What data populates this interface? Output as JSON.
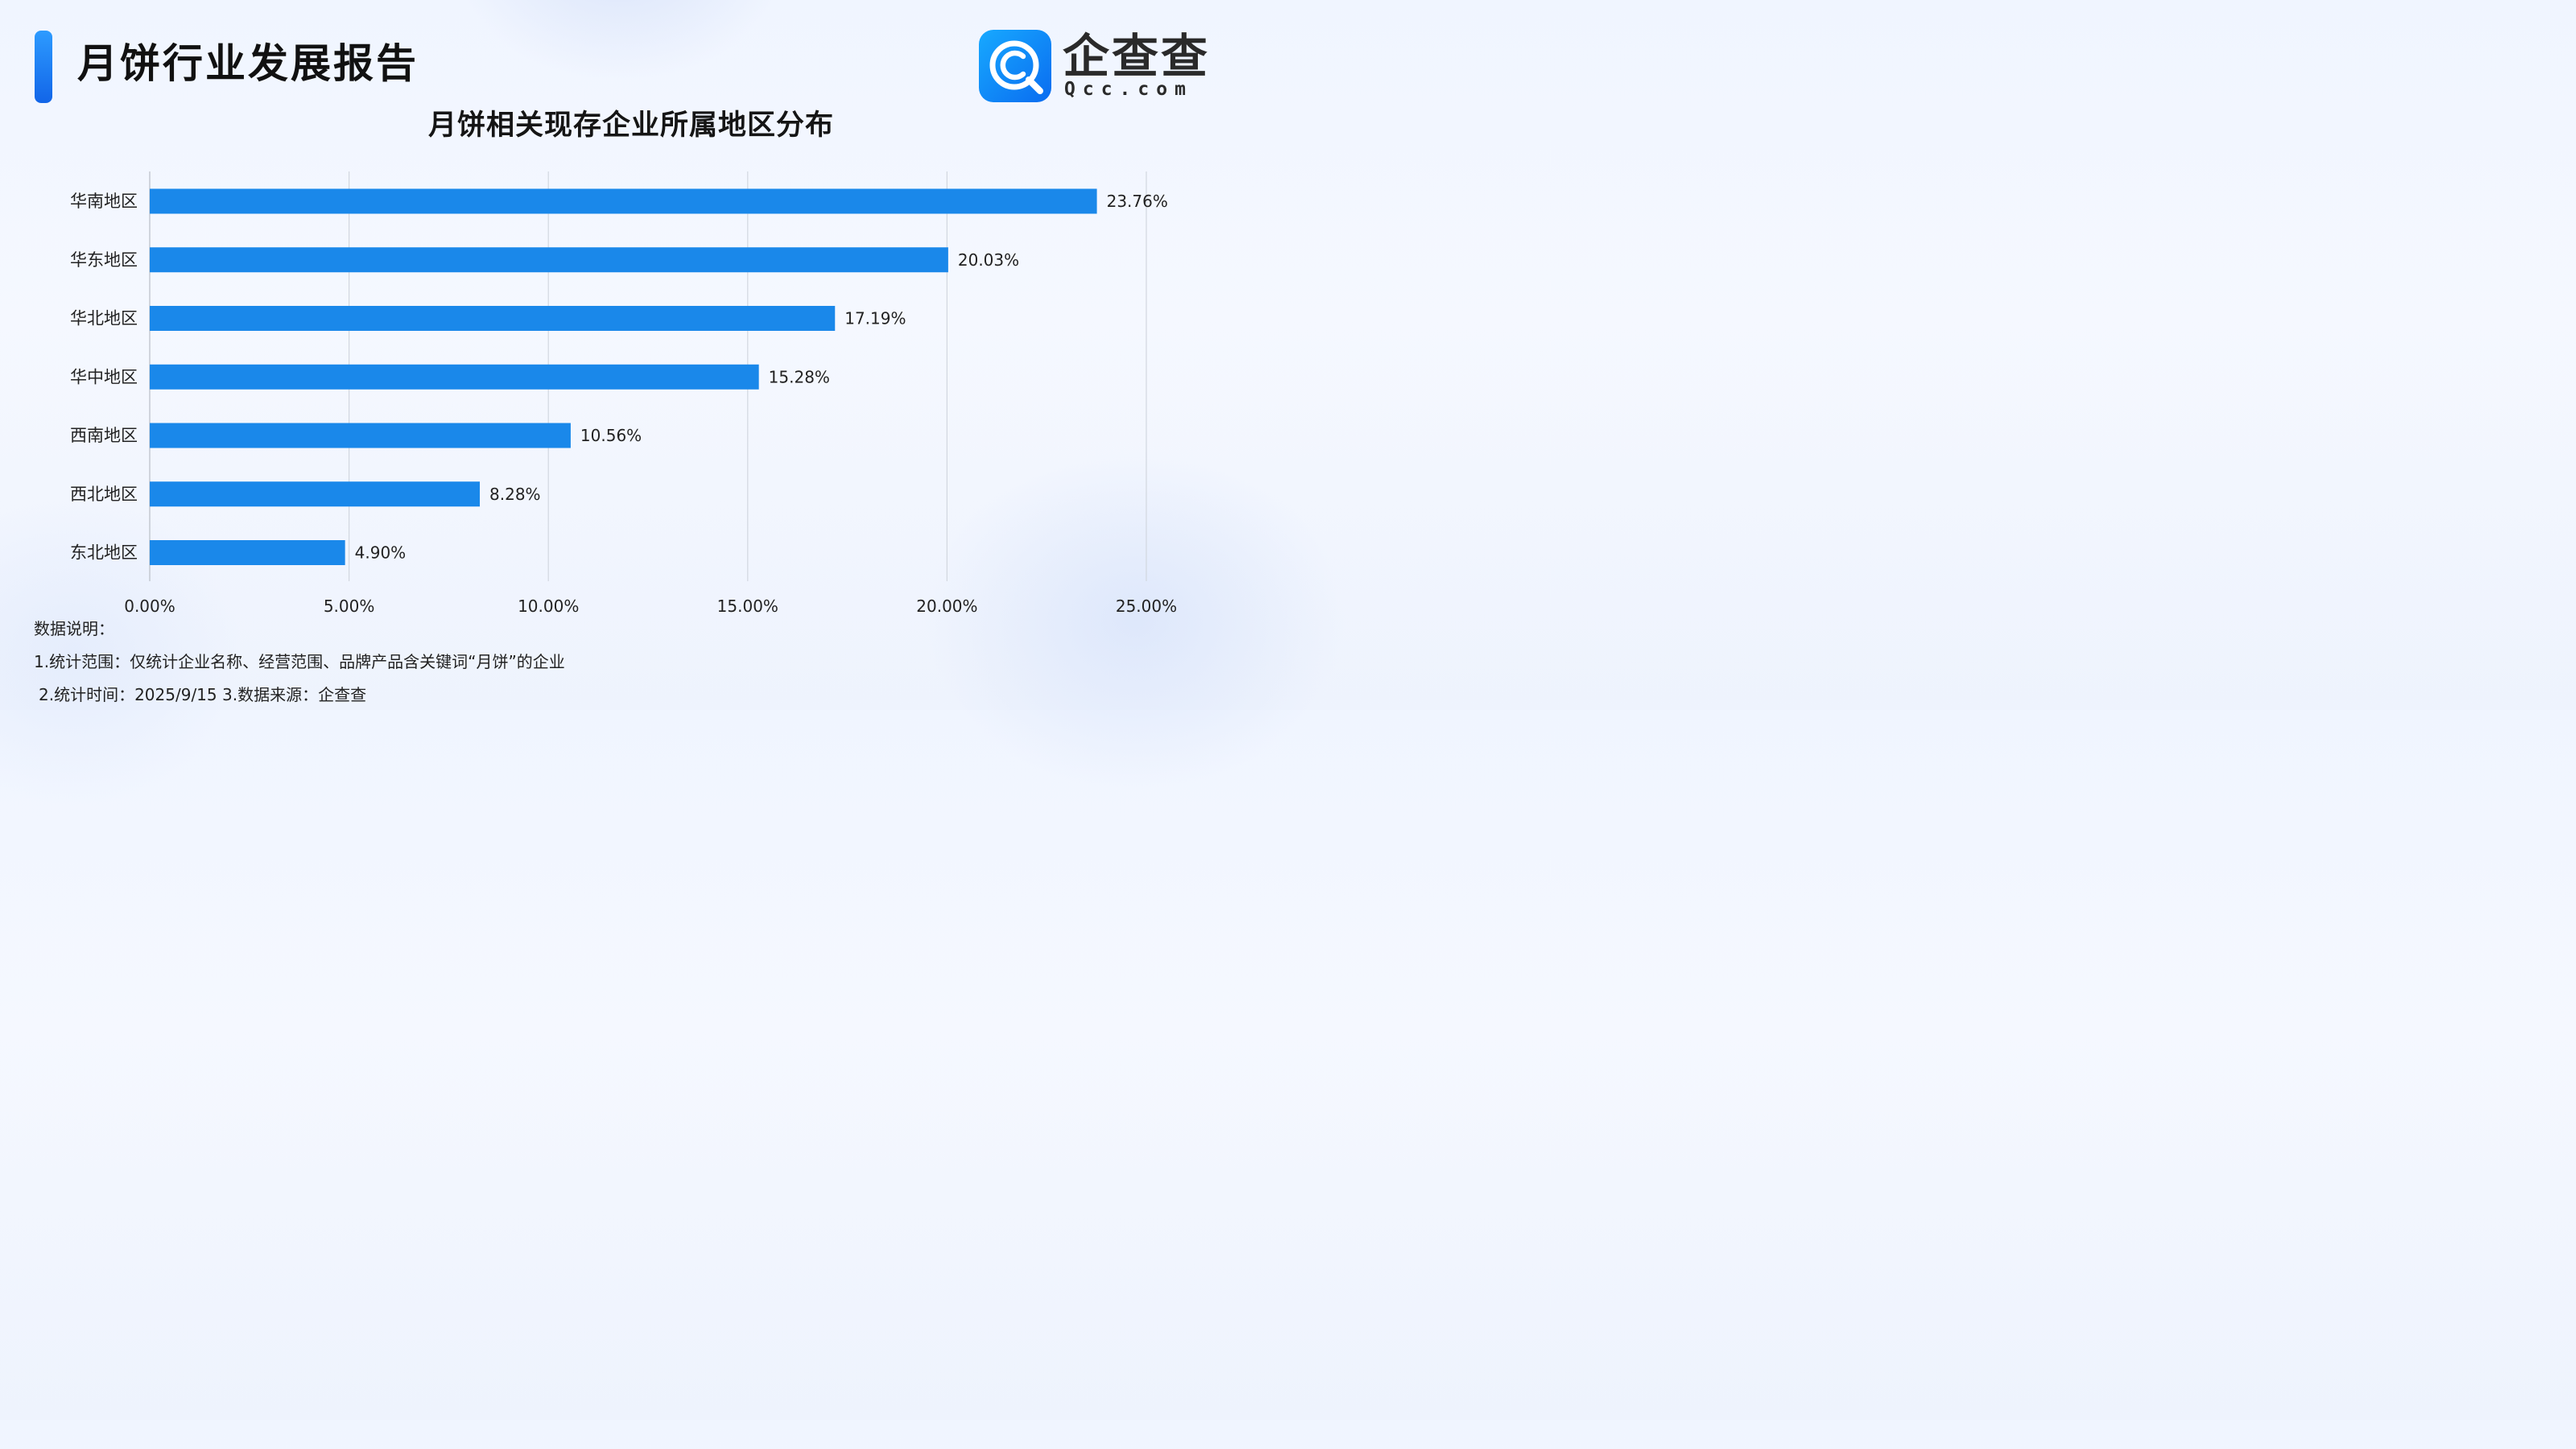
{
  "header": {
    "title": "月饼行业发展报告"
  },
  "logo": {
    "name": "企查查",
    "domain": "Qcc.com"
  },
  "colors": {
    "bar": "#1a88ea",
    "accent": "#1a7ff0",
    "grid": "#d2d7df",
    "axis": "#b9bec6"
  },
  "chart_data": {
    "type": "bar",
    "orientation": "horizontal",
    "title": "月饼相关现存企业所属地区分布",
    "categories": [
      "华南地区",
      "华东地区",
      "华北地区",
      "华中地区",
      "西南地区",
      "西北地区",
      "东北地区"
    ],
    "values": [
      23.76,
      20.03,
      17.19,
      15.28,
      10.56,
      8.28,
      4.9
    ],
    "value_labels": [
      "23.76%",
      "20.03%",
      "17.19%",
      "15.28%",
      "10.56%",
      "8.28%",
      "4.90%"
    ],
    "xlim": [
      0,
      25
    ],
    "xticks": [
      0,
      5,
      10,
      15,
      20,
      25
    ],
    "xtick_labels": [
      "0.00%",
      "5.00%",
      "10.00%",
      "15.00%",
      "20.00%",
      "25.00%"
    ],
    "xlabel": "",
    "ylabel": "",
    "grid": "vertical",
    "legend": "none"
  },
  "notes": {
    "heading": "数据说明：",
    "line1": "1.统计范围：仅统计企业名称、经营范围、品牌产品含关键词“月饼”的企业",
    "line2": "2.统计时间：2025/9/15  3.数据来源：企查查"
  }
}
